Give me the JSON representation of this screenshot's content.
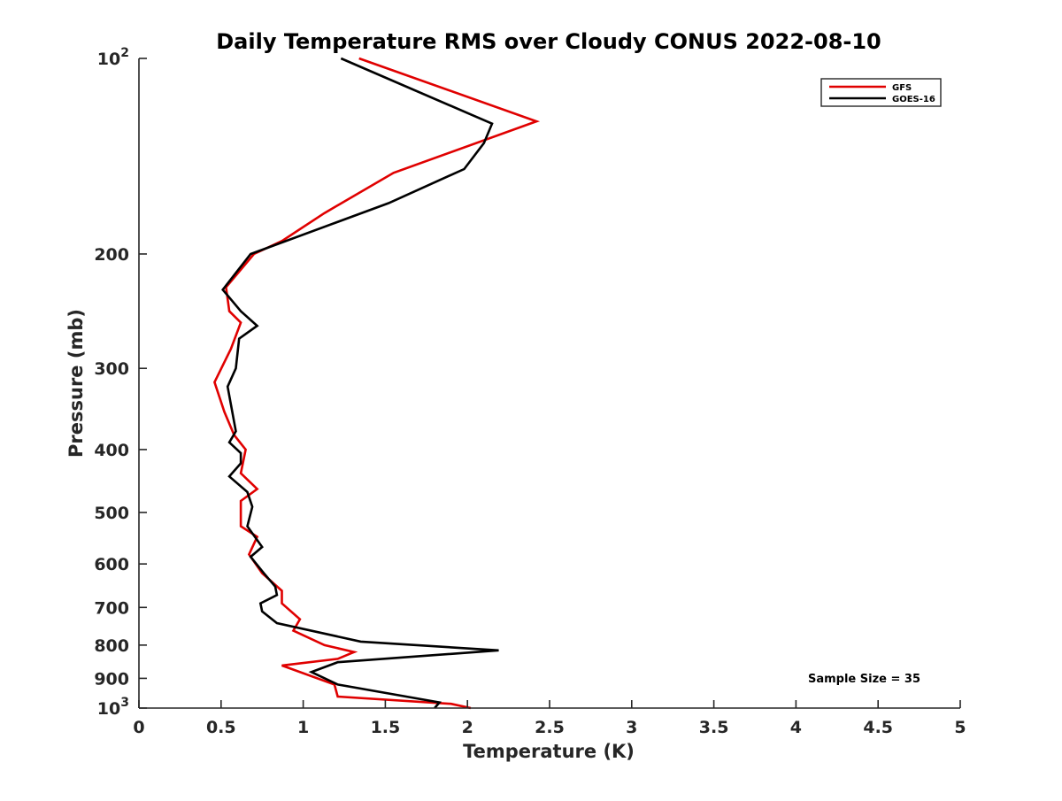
{
  "chart_data": {
    "type": "line",
    "title": "Daily Temperature RMS over Cloudy CONUS 2022-08-10",
    "xlabel": "Temperature (K)",
    "ylabel": "Pressure (mb)",
    "xlim": [
      0,
      5
    ],
    "ylim": [
      100,
      1000
    ],
    "y_scale": "log",
    "y_reversed": true,
    "grid": false,
    "legend_position": "top-right",
    "x_ticks": [
      "0",
      "0.5",
      "1",
      "1.5",
      "2",
      "2.5",
      "3",
      "3.5",
      "4",
      "4.5",
      "5"
    ],
    "x_tick_values": [
      0,
      0.5,
      1,
      1.5,
      2,
      2.5,
      3,
      3.5,
      4,
      4.5,
      5
    ],
    "y_ticks": [
      {
        "value": 100,
        "base": "10",
        "exp": "2"
      },
      {
        "value": 200,
        "label": "200"
      },
      {
        "value": 300,
        "label": "300"
      },
      {
        "value": 400,
        "label": "400"
      },
      {
        "value": 500,
        "label": "500"
      },
      {
        "value": 600,
        "label": "600"
      },
      {
        "value": 700,
        "label": "700"
      },
      {
        "value": 800,
        "label": "800"
      },
      {
        "value": 900,
        "label": "900"
      },
      {
        "value": 1000,
        "base": "10",
        "exp": "3"
      }
    ],
    "series": [
      {
        "name": "GFS",
        "color": "#e00000",
        "points": [
          [
            1.34,
            100
          ],
          [
            2.42,
            125
          ],
          [
            1.55,
            150
          ],
          [
            1.13,
            173
          ],
          [
            0.87,
            191
          ],
          [
            0.7,
            200
          ],
          [
            0.53,
            225
          ],
          [
            0.55,
            245
          ],
          [
            0.62,
            255
          ],
          [
            0.56,
            280
          ],
          [
            0.46,
            315
          ],
          [
            0.52,
            350
          ],
          [
            0.58,
            380
          ],
          [
            0.65,
            400
          ],
          [
            0.62,
            435
          ],
          [
            0.72,
            460
          ],
          [
            0.62,
            480
          ],
          [
            0.62,
            525
          ],
          [
            0.72,
            545
          ],
          [
            0.67,
            580
          ],
          [
            0.75,
            620
          ],
          [
            0.87,
            660
          ],
          [
            0.87,
            690
          ],
          [
            0.98,
            730
          ],
          [
            0.94,
            760
          ],
          [
            1.13,
            800
          ],
          [
            1.31,
            820
          ],
          [
            1.21,
            840
          ],
          [
            0.87,
            860
          ],
          [
            1.19,
            920
          ],
          [
            1.21,
            960
          ],
          [
            1.9,
            985
          ],
          [
            2.02,
            1000
          ]
        ]
      },
      {
        "name": "GOES-16",
        "color": "#000000",
        "points": [
          [
            1.23,
            100
          ],
          [
            2.15,
            126
          ],
          [
            2.1,
            135
          ],
          [
            1.98,
            148
          ],
          [
            1.52,
            167
          ],
          [
            0.68,
            200
          ],
          [
            0.51,
            227
          ],
          [
            0.62,
            245
          ],
          [
            0.72,
            258
          ],
          [
            0.61,
            270
          ],
          [
            0.59,
            300
          ],
          [
            0.54,
            320
          ],
          [
            0.59,
            375
          ],
          [
            0.55,
            390
          ],
          [
            0.62,
            405
          ],
          [
            0.62,
            420
          ],
          [
            0.55,
            440
          ],
          [
            0.66,
            465
          ],
          [
            0.69,
            490
          ],
          [
            0.66,
            525
          ],
          [
            0.75,
            565
          ],
          [
            0.68,
            585
          ],
          [
            0.76,
            620
          ],
          [
            0.83,
            650
          ],
          [
            0.84,
            670
          ],
          [
            0.74,
            690
          ],
          [
            0.75,
            710
          ],
          [
            0.84,
            740
          ],
          [
            1.35,
            790
          ],
          [
            2.19,
            815
          ],
          [
            1.21,
            850
          ],
          [
            1.05,
            880
          ],
          [
            1.21,
            920
          ],
          [
            1.83,
            980
          ],
          [
            1.8,
            1000
          ]
        ]
      }
    ],
    "annotation": "Sample Size = 35"
  }
}
